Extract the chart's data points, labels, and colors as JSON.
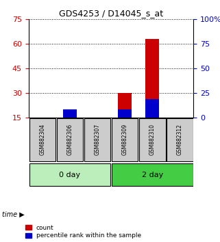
{
  "title": "GDS4253 / D14045_s_at",
  "samples": [
    "GSM882304",
    "GSM882306",
    "GSM882307",
    "GSM882309",
    "GSM882310",
    "GSM882312"
  ],
  "group_labels": [
    "0 day",
    "2 day"
  ],
  "group_colors": [
    "#bbeebb",
    "#44cc44"
  ],
  "count_values": [
    15,
    20,
    15,
    30,
    63,
    15
  ],
  "percentile_values": [
    15,
    20,
    15,
    20,
    26,
    15
  ],
  "ylim_left": [
    15,
    75
  ],
  "ylim_right": [
    0,
    100
  ],
  "yticks_left": [
    15,
    30,
    45,
    60,
    75
  ],
  "yticks_right": [
    0,
    25,
    50,
    75,
    100
  ],
  "left_tick_color": "#cc0000",
  "right_tick_color": "#0000cc",
  "bar_color_count": "#cc0000",
  "bar_color_pct": "#0000cc",
  "bar_width": 0.5,
  "grid_color": "black",
  "bg_color": "#ffffff",
  "sample_box_color": "#cccccc",
  "legend_count": "count",
  "legend_pct": "percentile rank within the sample"
}
